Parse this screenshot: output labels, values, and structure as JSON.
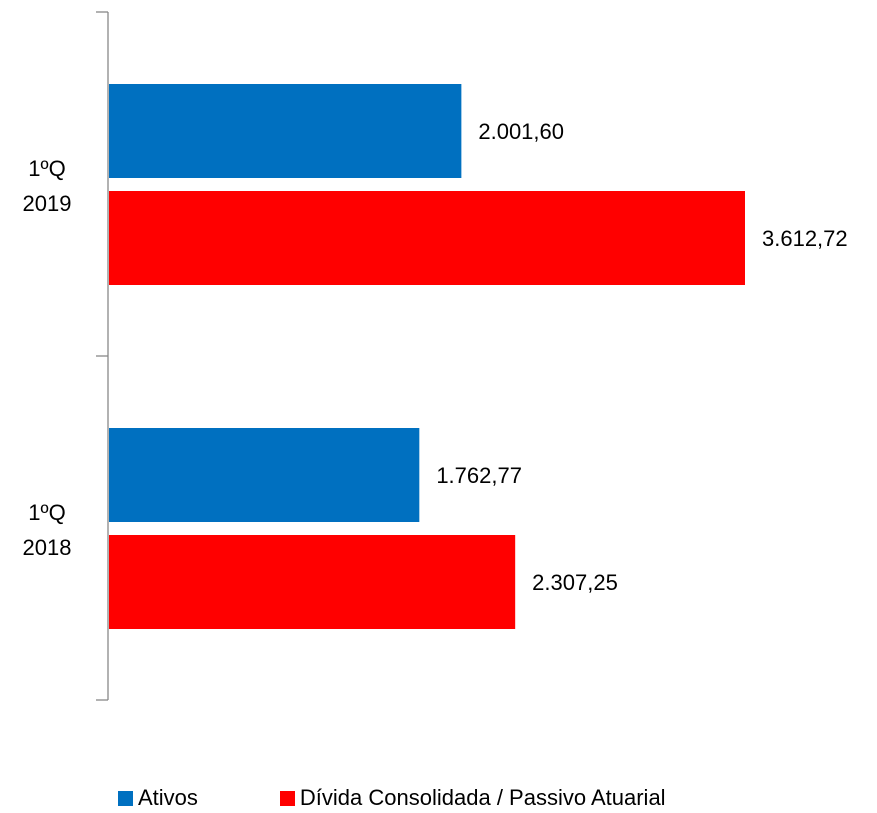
{
  "chart_data": {
    "type": "bar",
    "orientation": "horizontal",
    "categories": [
      {
        "line1": "1ºQ",
        "line2": "2019"
      },
      {
        "line1": "1ºQ",
        "line2": "2018"
      }
    ],
    "series": [
      {
        "name": "Ativos",
        "color": "#0070C0",
        "values": [
          2001.6,
          1762.77
        ],
        "labels": [
          "2.001,60",
          "1.762,77"
        ]
      },
      {
        "name": "Dívida Consolidada / Passivo Atuarial",
        "color": "#FF0000",
        "values": [
          3612.72,
          2307.25
        ],
        "labels": [
          "3.612,72",
          "2.307,25"
        ]
      }
    ],
    "xlim": [
      0,
      4000
    ],
    "grid": false,
    "legend_position": "bottom"
  }
}
